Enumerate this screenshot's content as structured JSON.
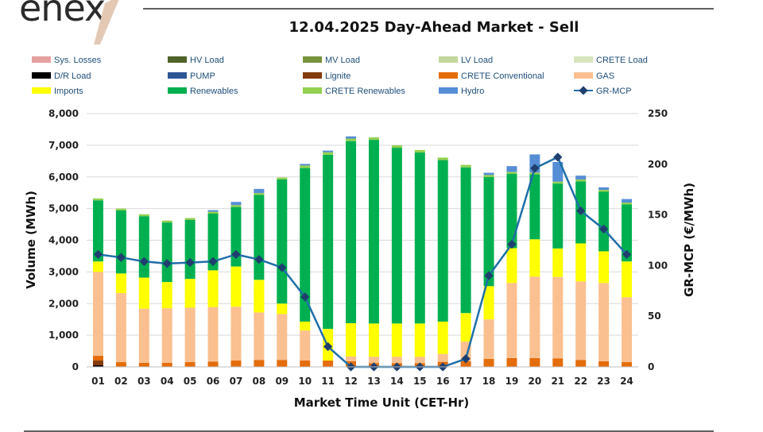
{
  "logo": {
    "brand": "enex"
  },
  "chart_data": {
    "type": "bar",
    "title": "12.04.2025  Day-Ahead Market - Sell",
    "xlabel": "Market Time Unit (CET-Hr)",
    "ylabel": "Volume (MWh)",
    "y2label": "GR-MCP (€/MWh)",
    "ylim": [
      0,
      8000
    ],
    "y2lim": [
      0,
      250
    ],
    "yticks": [
      "0",
      "1,000",
      "2,000",
      "3,000",
      "4,000",
      "5,000",
      "6,000",
      "7,000",
      "8,000"
    ],
    "y2ticks": [
      "0",
      "50",
      "100",
      "150",
      "200",
      "250"
    ],
    "categories": [
      "01",
      "02",
      "03",
      "04",
      "05",
      "06",
      "07",
      "08",
      "09",
      "10",
      "11",
      "12",
      "13",
      "14",
      "15",
      "16",
      "17",
      "18",
      "19",
      "20",
      "21",
      "22",
      "23",
      "24"
    ],
    "legend": [
      {
        "name": "Sys. Losses",
        "color": "#e6a0a0"
      },
      {
        "name": "HV Load",
        "color": "#4f6228"
      },
      {
        "name": "MV Load",
        "color": "#77933c"
      },
      {
        "name": "LV Load",
        "color": "#c3d69b"
      },
      {
        "name": "CRETE Load",
        "color": "#d7e4bd"
      },
      {
        "name": "D/R Load",
        "color": "#000000"
      },
      {
        "name": "PUMP",
        "color": "#2f5597"
      },
      {
        "name": "Lignite",
        "color": "#843c0c"
      },
      {
        "name": "CRETE Conventional",
        "color": "#e46c0a"
      },
      {
        "name": "GAS",
        "color": "#fac090"
      },
      {
        "name": "Imports",
        "color": "#ffff00"
      },
      {
        "name": "Renewables",
        "color": "#00b050"
      },
      {
        "name": "CRETE Renewables",
        "color": "#92d050"
      },
      {
        "name": "Hydro",
        "color": "#558ed5"
      },
      {
        "name": "GR-MCP",
        "color": "#1f6fa8"
      }
    ],
    "series": [
      {
        "name": "D/R Load",
        "color": "#000000",
        "values": [
          50,
          0,
          0,
          0,
          0,
          0,
          0,
          0,
          0,
          0,
          0,
          0,
          0,
          0,
          0,
          0,
          0,
          0,
          0,
          0,
          0,
          0,
          0,
          0
        ]
      },
      {
        "name": "Lignite",
        "color": "#843c0c",
        "values": [
          150,
          0,
          0,
          0,
          0,
          0,
          0,
          0,
          0,
          0,
          0,
          0,
          0,
          0,
          0,
          0,
          0,
          0,
          0,
          0,
          0,
          0,
          0,
          0
        ]
      },
      {
        "name": "CRETE Conventional",
        "color": "#e46c0a",
        "values": [
          150,
          150,
          130,
          130,
          150,
          170,
          200,
          220,
          220,
          200,
          200,
          180,
          120,
          120,
          120,
          160,
          180,
          250,
          280,
          280,
          270,
          220,
          180,
          150
        ]
      },
      {
        "name": "GAS",
        "color": "#fac090",
        "values": [
          2650,
          2180,
          1710,
          1720,
          1720,
          1720,
          1700,
          1500,
          1450,
          950,
          0,
          150,
          200,
          200,
          200,
          250,
          620,
          1250,
          2370,
          2570,
          2570,
          2480,
          2470,
          2050
        ]
      },
      {
        "name": "Imports",
        "color": "#ffff00",
        "values": [
          330,
          620,
          980,
          830,
          910,
          1160,
          1270,
          1030,
          330,
          280,
          1000,
          1050,
          1050,
          1050,
          1050,
          1020,
          900,
          1050,
          1100,
          1180,
          900,
          1200,
          1000,
          1130
        ]
      },
      {
        "name": "Renewables",
        "color": "#00b050",
        "values": [
          1930,
          1990,
          1940,
          1880,
          1860,
          1790,
          1880,
          2680,
          3920,
          4850,
          5500,
          5750,
          5800,
          5550,
          5400,
          5100,
          4600,
          3450,
          2350,
          2050,
          2050,
          1960,
          1880,
          1800
        ]
      },
      {
        "name": "CRETE Renewables",
        "color": "#92d050",
        "values": [
          60,
          60,
          60,
          60,
          60,
          60,
          60,
          60,
          60,
          80,
          80,
          80,
          80,
          80,
          80,
          80,
          80,
          60,
          60,
          60,
          60,
          60,
          60,
          60
        ]
      },
      {
        "name": "Hydro",
        "color": "#558ed5",
        "values": [
          0,
          0,
          0,
          0,
          0,
          50,
          100,
          130,
          0,
          50,
          50,
          70,
          0,
          0,
          0,
          0,
          0,
          70,
          180,
          570,
          620,
          120,
          80,
          110
        ]
      }
    ],
    "line": {
      "name": "GR-MCP",
      "color": "#1f6fa8",
      "values": [
        111,
        108,
        104,
        102,
        103,
        104,
        111,
        106,
        98,
        69,
        20,
        0,
        0,
        0,
        0,
        0,
        8,
        90,
        121,
        196,
        207,
        154,
        136,
        111
      ]
    }
  }
}
